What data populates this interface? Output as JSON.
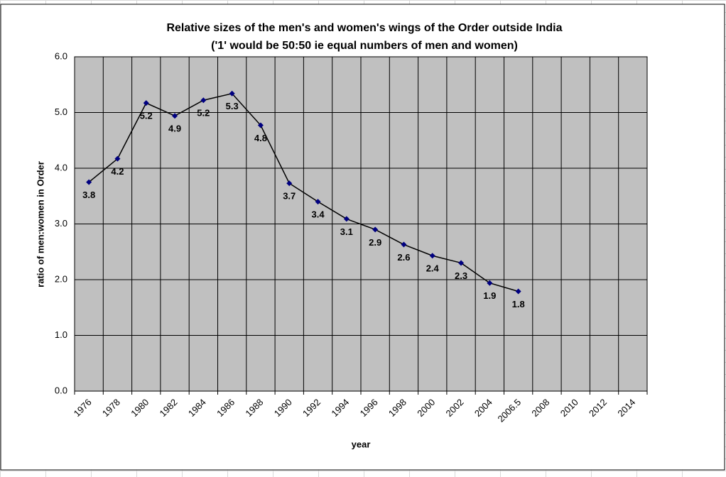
{
  "chart_data": {
    "type": "line",
    "title": "Relative sizes of the men's and women's wings of the Order outside India",
    "subtitle": "('1' would be 50:50 ie equal numbers of men and women)",
    "x_label": "year",
    "y_label": "ratio of men:women in Order",
    "categories": [
      "1976",
      "1978",
      "1980",
      "1982",
      "1984",
      "1986",
      "1988",
      "1990",
      "1992",
      "1994",
      "1996",
      "1998",
      "2000",
      "2002",
      "2004",
      "2006.5",
      "2008",
      "2010",
      "2012",
      "2014"
    ],
    "series": [
      {
        "name": "ratio",
        "color": "#000000",
        "marker_color": "#000080",
        "values": [
          3.75,
          4.17,
          5.17,
          4.94,
          5.22,
          5.34,
          4.77,
          3.73,
          3.4,
          3.09,
          2.9,
          2.63,
          2.43,
          2.3,
          1.94,
          1.79,
          null,
          null,
          null,
          null
        ],
        "value_labels": [
          "3.8",
          "4.2",
          "5.2",
          "4.9",
          "5.2",
          "5.3",
          "4.8",
          "3.7",
          "3.4",
          "3.1",
          "2.9",
          "2.6",
          "2.4",
          "2.3",
          "1.9",
          "1.8",
          null,
          null,
          null,
          null
        ]
      }
    ],
    "ylim": [
      0,
      6
    ],
    "yticks": [
      {
        "value": 0,
        "label": "0.0"
      },
      {
        "value": 1,
        "label": "1.0"
      },
      {
        "value": 2,
        "label": "2.0"
      },
      {
        "value": 3,
        "label": "3.0"
      },
      {
        "value": 4,
        "label": "4.0"
      },
      {
        "value": 5,
        "label": "5.0"
      },
      {
        "value": 6,
        "label": "6.0"
      }
    ],
    "grid": true,
    "plot_background": "#c0c0c0"
  }
}
